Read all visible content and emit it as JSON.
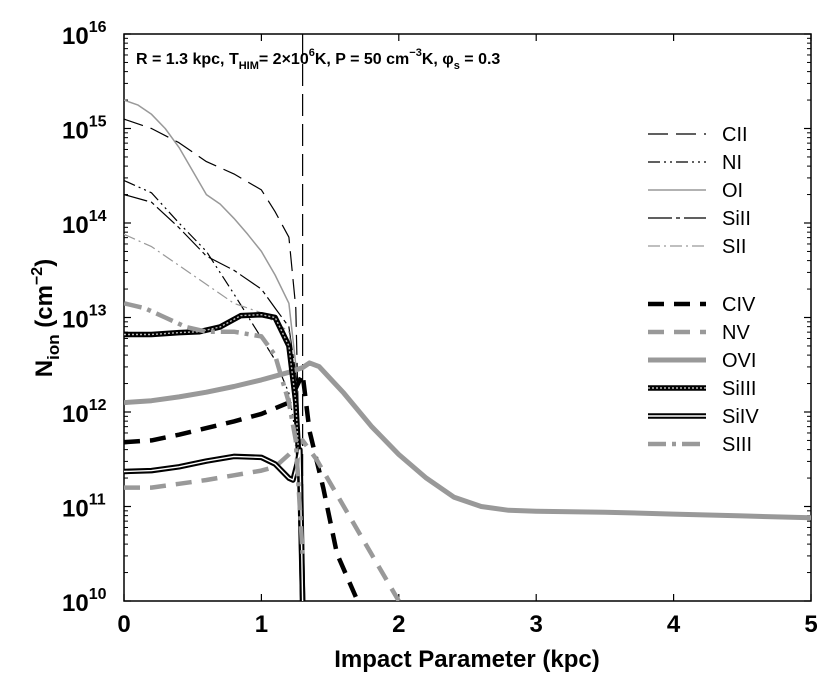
{
  "chart_data": {
    "type": "line",
    "title": "",
    "annotation": {
      "R_text": "R = 1.3 kpc, T",
      "T_sub": "HIM",
      "T_text": "= 2×10",
      "T_sup": "6",
      "P_text": "K, P = 50 cm",
      "P_sup": "−3",
      "phi_text": "K, φ",
      "phi_sub": "s",
      "phi_val": " = 0.3"
    },
    "xlabel": "Impact Parameter (kpc)",
    "ylabel": {
      "base": "N",
      "sub": "ion",
      "unit": " (cm",
      "sup": "−2",
      "close": ")"
    },
    "xlim": [
      0,
      5
    ],
    "ylog": true,
    "ylim_exp": [
      10,
      16
    ],
    "x_ticks": [
      "0",
      "1",
      "2",
      "3",
      "4",
      "5"
    ],
    "y_tick_exponents": [
      "10",
      "11",
      "12",
      "13",
      "14",
      "15",
      "16"
    ],
    "y_tick_base": "10",
    "vline": {
      "x": 1.3
    },
    "series": [
      {
        "name": "CII",
        "color": "#000000",
        "width": 1.2,
        "dash": "20,8",
        "double": false,
        "points": [
          [
            0,
            15.1
          ],
          [
            0.2,
            15.0
          ],
          [
            0.4,
            14.85
          ],
          [
            0.6,
            14.65
          ],
          [
            0.8,
            14.52
          ],
          [
            1.0,
            14.35
          ],
          [
            1.1,
            14.12
          ],
          [
            1.2,
            13.85
          ],
          [
            1.25,
            13.1
          ],
          [
            1.3,
            10
          ]
        ]
      },
      {
        "name": "NI",
        "color": "#000000",
        "width": 1.2,
        "dash": "12,4,2,4,2,4",
        "double": false,
        "points": [
          [
            0,
            14.45
          ],
          [
            0.2,
            14.32
          ],
          [
            0.4,
            14.0
          ],
          [
            0.6,
            13.7
          ],
          [
            0.8,
            13.25
          ],
          [
            0.95,
            12.9
          ],
          [
            1.1,
            12.55
          ],
          [
            1.2,
            12.2
          ],
          [
            1.28,
            11.5
          ],
          [
            1.3,
            10
          ]
        ]
      },
      {
        "name": "OI",
        "color": "#999999",
        "width": 1.5,
        "dash": "",
        "double": false,
        "points": [
          [
            0,
            15.3
          ],
          [
            0.1,
            15.25
          ],
          [
            0.2,
            15.15
          ],
          [
            0.3,
            15.0
          ],
          [
            0.4,
            14.8
          ],
          [
            0.5,
            14.55
          ],
          [
            0.6,
            14.3
          ],
          [
            0.7,
            14.2
          ],
          [
            0.8,
            14.05
          ],
          [
            0.9,
            13.88
          ],
          [
            1.0,
            13.7
          ],
          [
            1.1,
            13.45
          ],
          [
            1.2,
            13.15
          ],
          [
            1.25,
            12.5
          ],
          [
            1.3,
            10
          ]
        ]
      },
      {
        "name": "SiII",
        "color": "#000000",
        "width": 1.2,
        "dash": "24,4,4,4",
        "double": false,
        "points": [
          [
            0,
            14.3
          ],
          [
            0.2,
            14.22
          ],
          [
            0.4,
            13.95
          ],
          [
            0.6,
            13.65
          ],
          [
            0.8,
            13.5
          ],
          [
            1.0,
            13.3
          ],
          [
            1.1,
            13.1
          ],
          [
            1.2,
            12.9
          ],
          [
            1.26,
            12.3
          ],
          [
            1.3,
            10
          ]
        ]
      },
      {
        "name": "SII",
        "color": "#999999",
        "width": 1.2,
        "dash": "12,4,2,4",
        "double": false,
        "points": [
          [
            0,
            13.88
          ],
          [
            0.2,
            13.75
          ],
          [
            0.4,
            13.55
          ],
          [
            0.6,
            13.35
          ],
          [
            0.8,
            13.15
          ],
          [
            1.0,
            13.05
          ],
          [
            1.1,
            12.95
          ],
          [
            1.2,
            12.85
          ],
          [
            1.26,
            12.2
          ],
          [
            1.3,
            10
          ]
        ]
      },
      {
        "name": "CIV",
        "color": "#000000",
        "width": 4.5,
        "dash": "16,10",
        "double": false,
        "points": [
          [
            0,
            11.68
          ],
          [
            0.2,
            11.7
          ],
          [
            0.4,
            11.76
          ],
          [
            0.6,
            11.83
          ],
          [
            0.8,
            11.9
          ],
          [
            1.0,
            11.98
          ],
          [
            1.2,
            12.1
          ],
          [
            1.3,
            12.4
          ],
          [
            1.35,
            11.8
          ],
          [
            1.45,
            11.2
          ],
          [
            1.55,
            10.5
          ],
          [
            1.7,
            10
          ]
        ]
      },
      {
        "name": "NV",
        "color": "#999999",
        "width": 4.5,
        "dash": "16,10",
        "double": false,
        "points": [
          [
            0,
            11.2
          ],
          [
            0.2,
            11.2
          ],
          [
            0.4,
            11.24
          ],
          [
            0.6,
            11.28
          ],
          [
            0.8,
            11.33
          ],
          [
            1.0,
            11.38
          ],
          [
            1.1,
            11.42
          ],
          [
            1.2,
            11.55
          ],
          [
            1.3,
            11.7
          ],
          [
            1.4,
            11.5
          ],
          [
            1.6,
            11.0
          ],
          [
            1.8,
            10.5
          ],
          [
            2.0,
            10
          ]
        ]
      },
      {
        "name": "OVI",
        "color": "#999999",
        "width": 5,
        "dash": "",
        "double": false,
        "points": [
          [
            0,
            12.1
          ],
          [
            0.2,
            12.12
          ],
          [
            0.4,
            12.16
          ],
          [
            0.6,
            12.21
          ],
          [
            0.8,
            12.27
          ],
          [
            1.0,
            12.34
          ],
          [
            1.2,
            12.42
          ],
          [
            1.3,
            12.47
          ],
          [
            1.35,
            12.52
          ],
          [
            1.42,
            12.48
          ],
          [
            1.6,
            12.2
          ],
          [
            1.8,
            11.85
          ],
          [
            2.0,
            11.55
          ],
          [
            2.2,
            11.3
          ],
          [
            2.4,
            11.1
          ],
          [
            2.6,
            11.0
          ],
          [
            2.8,
            10.96
          ],
          [
            3.0,
            10.95
          ],
          [
            3.5,
            10.94
          ],
          [
            4.0,
            10.92
          ],
          [
            4.5,
            10.9
          ],
          [
            5.0,
            10.88
          ]
        ]
      },
      {
        "name": "SiIII",
        "color": "#000000",
        "width": 5.5,
        "dash": "",
        "double": true,
        "inner": "#bbbbbb",
        "inner_dash": "2,2",
        "points": [
          [
            0,
            12.82
          ],
          [
            0.2,
            12.82
          ],
          [
            0.4,
            12.84
          ],
          [
            0.55,
            12.85
          ],
          [
            0.7,
            12.9
          ],
          [
            0.85,
            13.02
          ],
          [
            1.0,
            13.03
          ],
          [
            1.1,
            13.0
          ],
          [
            1.2,
            12.7
          ],
          [
            1.25,
            12.1
          ],
          [
            1.28,
            11.3
          ],
          [
            1.3,
            10
          ]
        ]
      },
      {
        "name": "SiIV",
        "color": "#000000",
        "width": 5.5,
        "dash": "",
        "double": true,
        "inner": "#ffffff",
        "inner_dash": "",
        "points": [
          [
            0,
            11.37
          ],
          [
            0.2,
            11.38
          ],
          [
            0.4,
            11.42
          ],
          [
            0.6,
            11.48
          ],
          [
            0.8,
            11.53
          ],
          [
            1.0,
            11.52
          ],
          [
            1.1,
            11.45
          ],
          [
            1.2,
            11.3
          ],
          [
            1.23,
            11.28
          ],
          [
            1.26,
            11.45
          ],
          [
            1.28,
            11.6
          ],
          [
            1.3,
            10
          ]
        ]
      },
      {
        "name": "SIII",
        "color": "#999999",
        "width": 4.5,
        "dash": "18,6,4,6",
        "double": false,
        "points": [
          [
            0,
            13.15
          ],
          [
            0.15,
            13.1
          ],
          [
            0.3,
            13.0
          ],
          [
            0.45,
            12.9
          ],
          [
            0.6,
            12.85
          ],
          [
            0.8,
            12.85
          ],
          [
            1.0,
            12.8
          ],
          [
            1.1,
            12.6
          ],
          [
            1.2,
            12.1
          ],
          [
            1.25,
            11.7
          ],
          [
            1.3,
            10.5
          ]
        ]
      }
    ],
    "legend_position": "right"
  }
}
